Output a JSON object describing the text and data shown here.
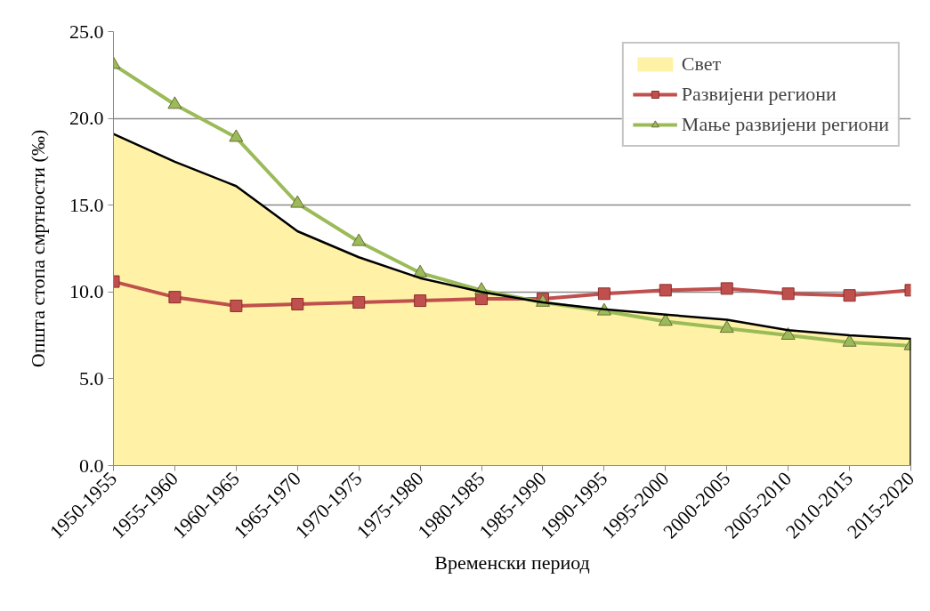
{
  "chart_data": {
    "type": "line",
    "xlabel": "Временски период",
    "ylabel": "Општа стопа смртности (‰)",
    "categories": [
      "1950-1955",
      "1955-1960",
      "1960-1965",
      "1965-1970",
      "1970-1975",
      "1975-1980",
      "1980-1985",
      "1985-1990",
      "1990-1995",
      "1995-2000",
      "2000-2005",
      "2005-2010",
      "2010-2015",
      "2015-2020"
    ],
    "ylim": [
      0,
      25
    ],
    "yticks": [
      {
        "value": 0,
        "label": "0.0"
      },
      {
        "value": 5,
        "label": "5.0"
      },
      {
        "value": 10,
        "label": "10.0"
      },
      {
        "value": 15,
        "label": "15.0"
      },
      {
        "value": 20,
        "label": "20.0"
      },
      {
        "value": 25,
        "label": "25.0"
      }
    ],
    "grid": "y",
    "legend": "top right",
    "series": [
      {
        "name": "Свет",
        "type": "area",
        "color": "#fff2a6",
        "values": [
          19.1,
          17.5,
          16.1,
          13.5,
          12.0,
          10.8,
          10.0,
          9.4,
          9.0,
          8.7,
          8.4,
          7.8,
          7.5,
          7.3
        ]
      },
      {
        "name": "Развијени региони",
        "marker": "square",
        "color": "#c0504d",
        "values": [
          10.6,
          9.7,
          9.2,
          9.3,
          9.4,
          9.5,
          9.6,
          9.6,
          9.9,
          10.1,
          10.2,
          9.9,
          9.8,
          10.1
        ]
      },
      {
        "name": "Мање развијени региони",
        "marker": "triangle",
        "color": "#9bbb59",
        "values": [
          23.1,
          20.8,
          18.9,
          15.1,
          12.9,
          11.1,
          10.1,
          9.4,
          8.9,
          8.3,
          7.9,
          7.5,
          7.1,
          6.9
        ]
      }
    ]
  }
}
